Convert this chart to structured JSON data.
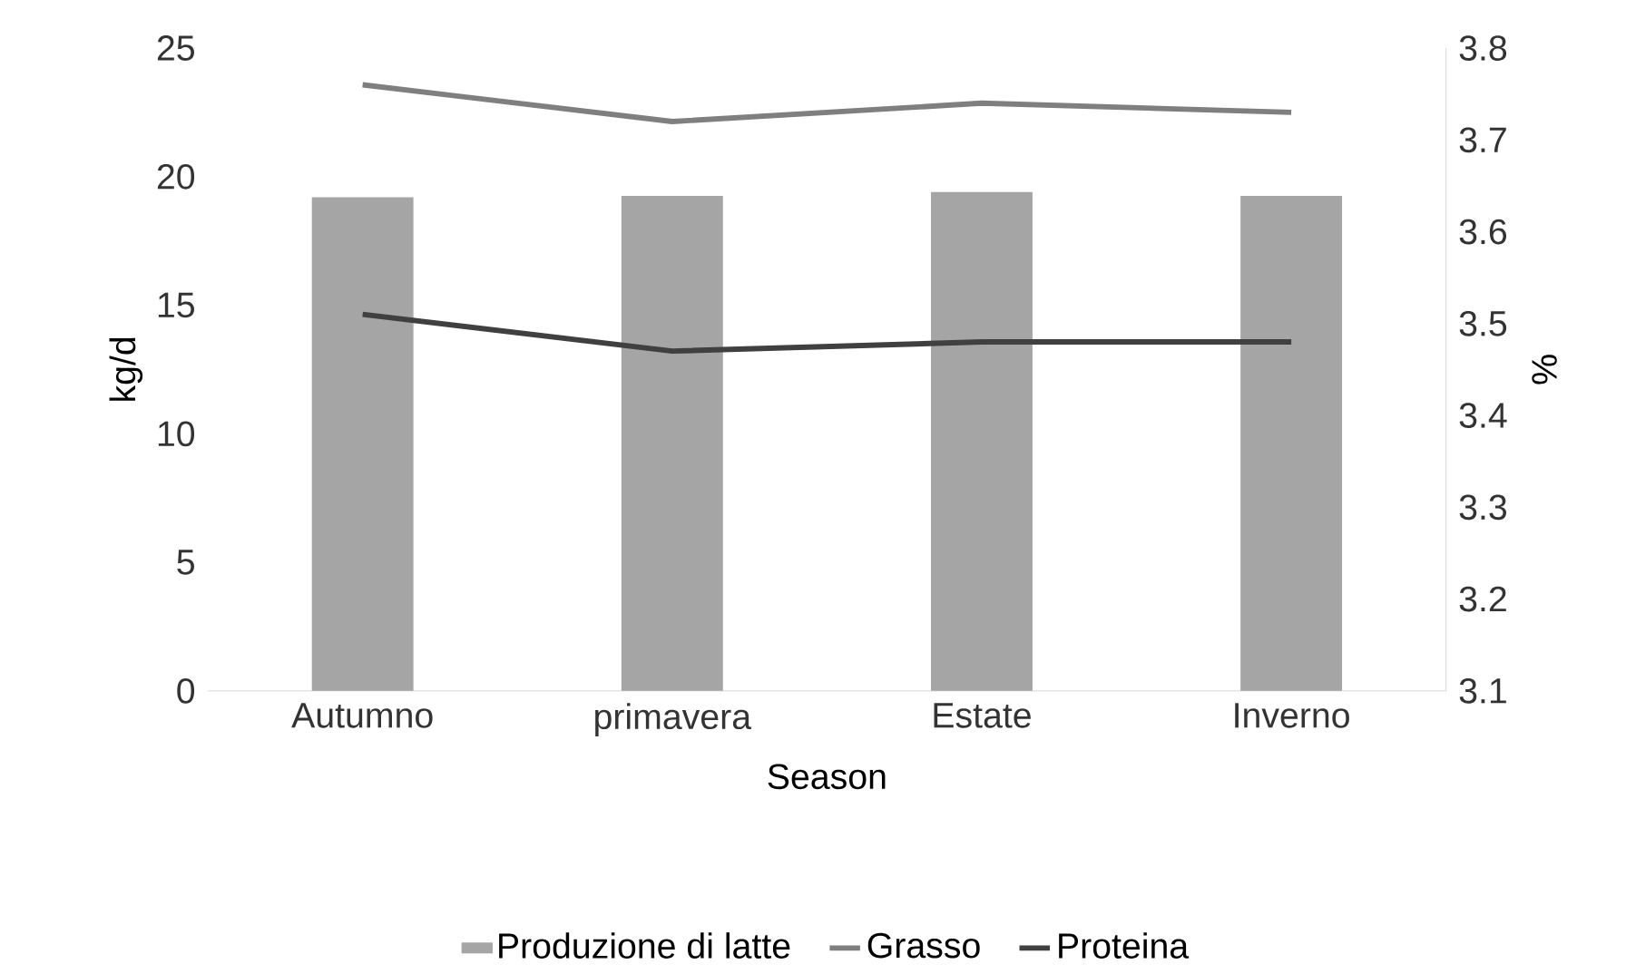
{
  "chart_data": {
    "type": "bar",
    "xlabel": "Season",
    "ylabel": "kg/d",
    "y2label": "%",
    "categories": [
      "Autumno",
      "primavera",
      "Estate",
      "Inverno"
    ],
    "series": [
      {
        "name": "Produzione di latte",
        "color": "#a5a5a5",
        "values": [
          19.2,
          19.25,
          19.4,
          19.25
        ]
      },
      {
        "name": "Grasso",
        "type": "line",
        "axis": "y2",
        "color": "#7f7f7f",
        "values": [
          3.76,
          3.72,
          3.74,
          3.73
        ]
      },
      {
        "name": "Proteina",
        "type": "line",
        "axis": "y2",
        "color": "#404040",
        "values": [
          3.51,
          3.47,
          3.48,
          3.48
        ]
      }
    ],
    "ylim": [
      0,
      25
    ],
    "yticks": [
      0,
      5,
      10,
      15,
      20,
      25
    ],
    "y2lim": [
      3.1,
      3.8
    ],
    "y2ticks": [
      3.1,
      3.2,
      3.3,
      3.4,
      3.5,
      3.6,
      3.7,
      3.8
    ],
    "legend": "bottom",
    "marker": "none",
    "grid": false
  }
}
